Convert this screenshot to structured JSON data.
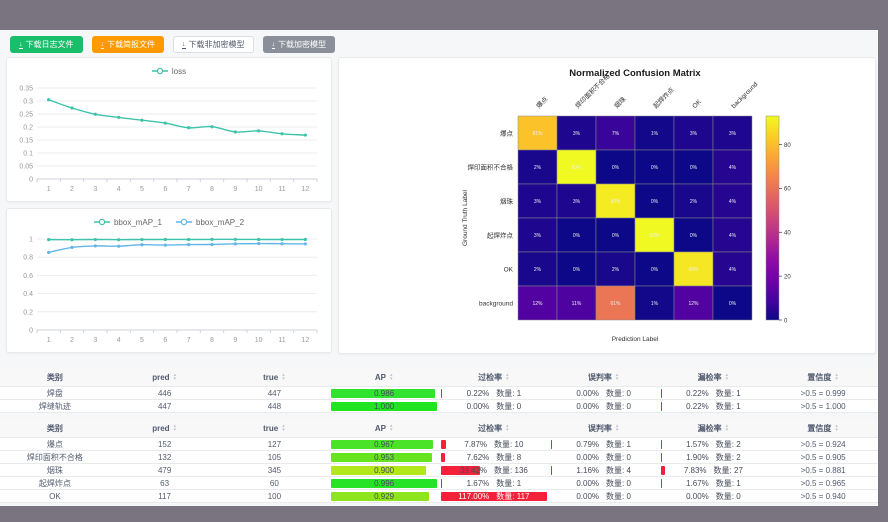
{
  "chrome_color": "#7a7480",
  "toolbar": {
    "buttons": [
      {
        "name": "download-log-file-button",
        "label": "下载日志文件",
        "variant": "success"
      },
      {
        "name": "download-report-file-button",
        "label": "下载简报文件",
        "variant": "warning"
      },
      {
        "name": "download-unencrypted-model-button",
        "label": "下载非加密模型",
        "variant": "default"
      },
      {
        "name": "download-encrypted-model-button",
        "label": "下载加密模型",
        "variant": "gray"
      }
    ]
  },
  "chart_data": [
    {
      "id": "loss",
      "type": "line",
      "x": [
        1,
        2,
        3,
        4,
        5,
        6,
        7,
        8,
        9,
        10,
        11,
        12
      ],
      "series": [
        {
          "name": "loss",
          "color": "#3ec3ab",
          "values": [
            0.305,
            0.273,
            0.249,
            0.237,
            0.226,
            0.215,
            0.197,
            0.201,
            0.181,
            0.185,
            0.174,
            0.169
          ]
        }
      ],
      "ylim": [
        0,
        0.35
      ],
      "yticks": [
        0,
        0.05,
        0.1,
        0.15,
        0.2,
        0.25,
        0.3,
        0.35
      ],
      "grid": true,
      "legend_position": "top"
    },
    {
      "id": "bbox_map",
      "type": "line",
      "x": [
        1,
        2,
        3,
        4,
        5,
        6,
        7,
        8,
        9,
        10,
        11,
        12
      ],
      "series": [
        {
          "name": "bbox_mAP_1",
          "color": "#3ec3ab",
          "values": [
            0.993,
            0.992,
            0.994,
            0.992,
            0.994,
            0.995,
            0.995,
            0.996,
            0.996,
            0.995,
            0.994,
            0.995
          ]
        },
        {
          "name": "bbox_mAP_2",
          "color": "#64b5e6",
          "values": [
            0.852,
            0.908,
            0.924,
            0.921,
            0.937,
            0.933,
            0.938,
            0.94,
            0.947,
            0.95,
            0.948,
            0.946
          ]
        }
      ],
      "ylim": [
        0,
        1
      ],
      "yticks": [
        0,
        0.2,
        0.4,
        0.6,
        0.8,
        1
      ],
      "grid": true,
      "legend_position": "top"
    },
    {
      "id": "confusion_matrix",
      "type": "heatmap",
      "title": "Normalized Confusion Matrix",
      "xlabel": "Prediction Label",
      "ylabel": "Ground Truth Label",
      "labels": [
        "爆点",
        "焊印面积不合格",
        "烟珠",
        "起焊炸点",
        "OK",
        "background"
      ],
      "values_pct": [
        [
          81,
          3,
          7,
          1,
          3,
          3
        ],
        [
          2,
          93,
          0,
          0,
          0,
          4
        ],
        [
          3,
          3,
          90,
          0,
          2,
          4
        ],
        [
          3,
          0,
          0,
          93,
          0,
          4
        ],
        [
          2,
          0,
          2,
          0,
          89,
          4
        ],
        [
          12,
          11,
          61,
          1,
          12,
          0
        ]
      ],
      "vmax": 93,
      "colorbar_ticks": [
        80,
        60,
        40,
        20,
        0
      ],
      "colormap": "plasma"
    }
  ],
  "labels": {
    "count": "数量"
  },
  "table_headers": [
    {
      "label": "类别",
      "key": "class",
      "sortable": false
    },
    {
      "label": "pred",
      "key": "pred",
      "sortable": true
    },
    {
      "label": "true",
      "key": "true",
      "sortable": true
    },
    {
      "label": "AP",
      "key": "ap",
      "sortable": true
    },
    {
      "label": "过检率",
      "key": "over",
      "sortable": true
    },
    {
      "label": "误判率",
      "key": "mis",
      "sortable": true
    },
    {
      "label": "漏检率",
      "key": "miss",
      "sortable": true
    },
    {
      "label": "置信度",
      "key": "conf",
      "sortable": true
    }
  ],
  "tables": [
    {
      "rows": [
        {
          "class": "焊盘",
          "pred": "446",
          "true": "447",
          "ap": 0.986,
          "ap_color": "#2fe32f",
          "over": {
            "pct": 0.22,
            "count": 1
          },
          "mis": {
            "pct": 0.0,
            "count": 0
          },
          "miss": {
            "pct": 0.22,
            "count": 1
          },
          "conf": ">0.5 = 0.999"
        },
        {
          "class": "焊缝轨迹",
          "pred": "447",
          "true": "448",
          "ap": 1.0,
          "ap_color": "#1fe41f",
          "over": {
            "pct": 0.0,
            "count": 0
          },
          "mis": {
            "pct": 0.0,
            "count": 0
          },
          "miss": {
            "pct": 0.22,
            "count": 1
          },
          "conf": ">0.5 = 1.000"
        }
      ]
    },
    {
      "rows": [
        {
          "class": "爆点",
          "pred": "152",
          "true": "127",
          "ap": 0.967,
          "ap_color": "#4ae327",
          "over": {
            "pct": 7.87,
            "count": 10
          },
          "mis": {
            "pct": 0.79,
            "count": 1
          },
          "miss": {
            "pct": 1.57,
            "count": 2
          },
          "conf": ">0.5 = 0.924"
        },
        {
          "class": "焊印面积不合格",
          "pred": "132",
          "true": "105",
          "ap": 0.953,
          "ap_color": "#66e41f",
          "over": {
            "pct": 7.62,
            "count": 8
          },
          "mis": {
            "pct": 0.0,
            "count": 0
          },
          "miss": {
            "pct": 1.9,
            "count": 2
          },
          "conf": ">0.5 = 0.905"
        },
        {
          "class": "烟珠",
          "pred": "479",
          "true": "345",
          "ap": 0.9,
          "ap_color": "#b2e71c",
          "over": {
            "pct": 39.42,
            "count": 136
          },
          "mis": {
            "pct": 1.16,
            "count": 4
          },
          "miss": {
            "pct": 7.83,
            "count": 27
          },
          "conf": ">0.5 = 0.881"
        },
        {
          "class": "起焊炸点",
          "pred": "63",
          "true": "60",
          "ap": 0.996,
          "ap_color": "#27e327",
          "over": {
            "pct": 1.67,
            "count": 1
          },
          "mis": {
            "pct": 0.0,
            "count": 0
          },
          "miss": {
            "pct": 1.67,
            "count": 1
          },
          "conf": ">0.5 = 0.965"
        },
        {
          "class": "OK",
          "pred": "117",
          "true": "100",
          "ap": 0.929,
          "ap_color": "#8ee51d",
          "over": {
            "pct": 117.0,
            "count": 117
          },
          "mis": {
            "pct": 0.0,
            "count": 0
          },
          "miss": {
            "pct": 0.0,
            "count": 0
          },
          "conf": ">0.5 = 0.940"
        }
      ]
    }
  ],
  "colors": {
    "rate_bar": "#f3213a",
    "ap_text": "#464c5b"
  }
}
